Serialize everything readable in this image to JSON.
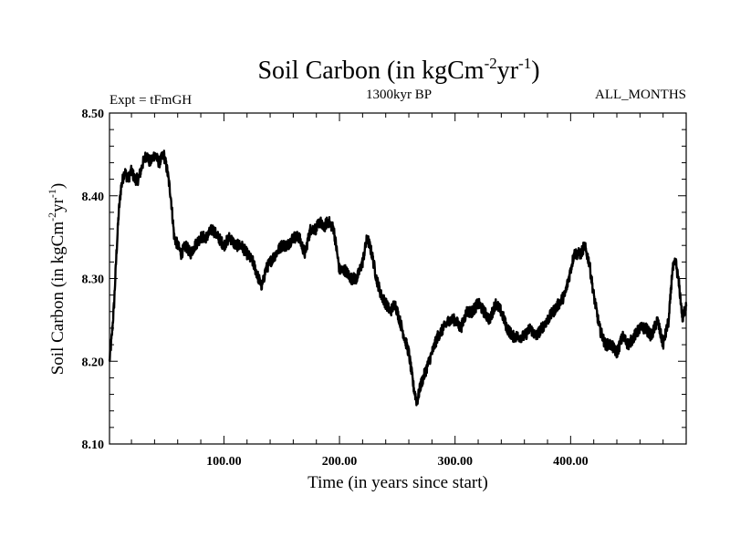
{
  "chart_data": {
    "type": "line",
    "title_main": "Soil Carbon (in kgCm",
    "title_sup1": "-2",
    "title_mid": "yr",
    "title_sup2": "-1",
    "title_end": ")",
    "left_label": "Expt = tFmGH",
    "center_label": "1300kyr BP",
    "right_label": "ALL_MONTHS",
    "xlabel": "Time (in years since start)",
    "ylabel_main": "Soil Carbon (in kgCm",
    "ylabel_sup1": "-2",
    "ylabel_mid": "yr",
    "ylabel_sup2": "-1",
    "ylabel_end": ")",
    "xlim": [
      1,
      500
    ],
    "ylim": [
      8.1,
      8.5
    ],
    "x_ticks": [
      {
        "value": 100,
        "label": "100.00"
      },
      {
        "value": 200,
        "label": "200.00"
      },
      {
        "value": 300,
        "label": "300.00"
      },
      {
        "value": 400,
        "label": "400.00"
      }
    ],
    "y_ticks": [
      {
        "value": 8.1,
        "label": "8.10"
      },
      {
        "value": 8.2,
        "label": "8.20"
      },
      {
        "value": 8.3,
        "label": "8.30"
      },
      {
        "value": 8.4,
        "label": "8.40"
      },
      {
        "value": 8.5,
        "label": "8.50"
      }
    ],
    "grid": false,
    "series": [
      {
        "color": "#000000",
        "x": [
          1,
          3,
          5,
          7,
          9,
          11,
          14,
          17,
          20,
          23,
          26,
          30,
          33,
          36,
          40,
          44,
          48,
          51,
          54,
          57,
          60,
          63,
          67,
          71,
          75,
          80,
          85,
          90,
          95,
          100,
          105,
          110,
          115,
          120,
          125,
          130,
          133,
          136,
          140,
          145,
          150,
          155,
          160,
          165,
          170,
          175,
          180,
          183,
          186,
          190,
          195,
          200,
          205,
          210,
          215,
          220,
          224,
          228,
          232,
          236,
          240,
          244,
          248,
          252,
          256,
          260,
          264,
          267,
          270,
          275,
          280,
          285,
          290,
          295,
          300,
          305,
          310,
          315,
          320,
          325,
          330,
          335,
          340,
          345,
          350,
          355,
          360,
          365,
          370,
          375,
          380,
          385,
          390,
          395,
          400,
          403,
          406,
          409,
          412,
          416,
          420,
          425,
          430,
          435,
          440,
          445,
          450,
          455,
          460,
          465,
          470,
          475,
          480,
          485,
          488,
          491,
          494,
          497,
          500
        ],
        "y": [
          8.2,
          8.23,
          8.27,
          8.33,
          8.38,
          8.41,
          8.43,
          8.42,
          8.43,
          8.42,
          8.42,
          8.44,
          8.45,
          8.44,
          8.45,
          8.44,
          8.45,
          8.43,
          8.4,
          8.35,
          8.34,
          8.33,
          8.34,
          8.33,
          8.34,
          8.35,
          8.35,
          8.36,
          8.35,
          8.34,
          8.35,
          8.34,
          8.34,
          8.33,
          8.32,
          8.3,
          8.29,
          8.31,
          8.32,
          8.33,
          8.34,
          8.34,
          8.35,
          8.35,
          8.33,
          8.36,
          8.36,
          8.37,
          8.36,
          8.37,
          8.36,
          8.31,
          8.31,
          8.3,
          8.3,
          8.32,
          8.35,
          8.33,
          8.3,
          8.28,
          8.27,
          8.26,
          8.27,
          8.25,
          8.23,
          8.21,
          8.17,
          8.15,
          8.17,
          8.19,
          8.21,
          8.23,
          8.24,
          8.25,
          8.25,
          8.24,
          8.26,
          8.26,
          8.27,
          8.26,
          8.25,
          8.27,
          8.26,
          8.24,
          8.23,
          8.23,
          8.23,
          8.24,
          8.23,
          8.24,
          8.25,
          8.26,
          8.27,
          8.28,
          8.31,
          8.33,
          8.33,
          8.33,
          8.34,
          8.32,
          8.28,
          8.24,
          8.22,
          8.22,
          8.21,
          8.23,
          8.22,
          8.23,
          8.24,
          8.24,
          8.23,
          8.25,
          8.22,
          8.25,
          8.31,
          8.32,
          8.29,
          8.25,
          8.27
        ]
      }
    ]
  }
}
